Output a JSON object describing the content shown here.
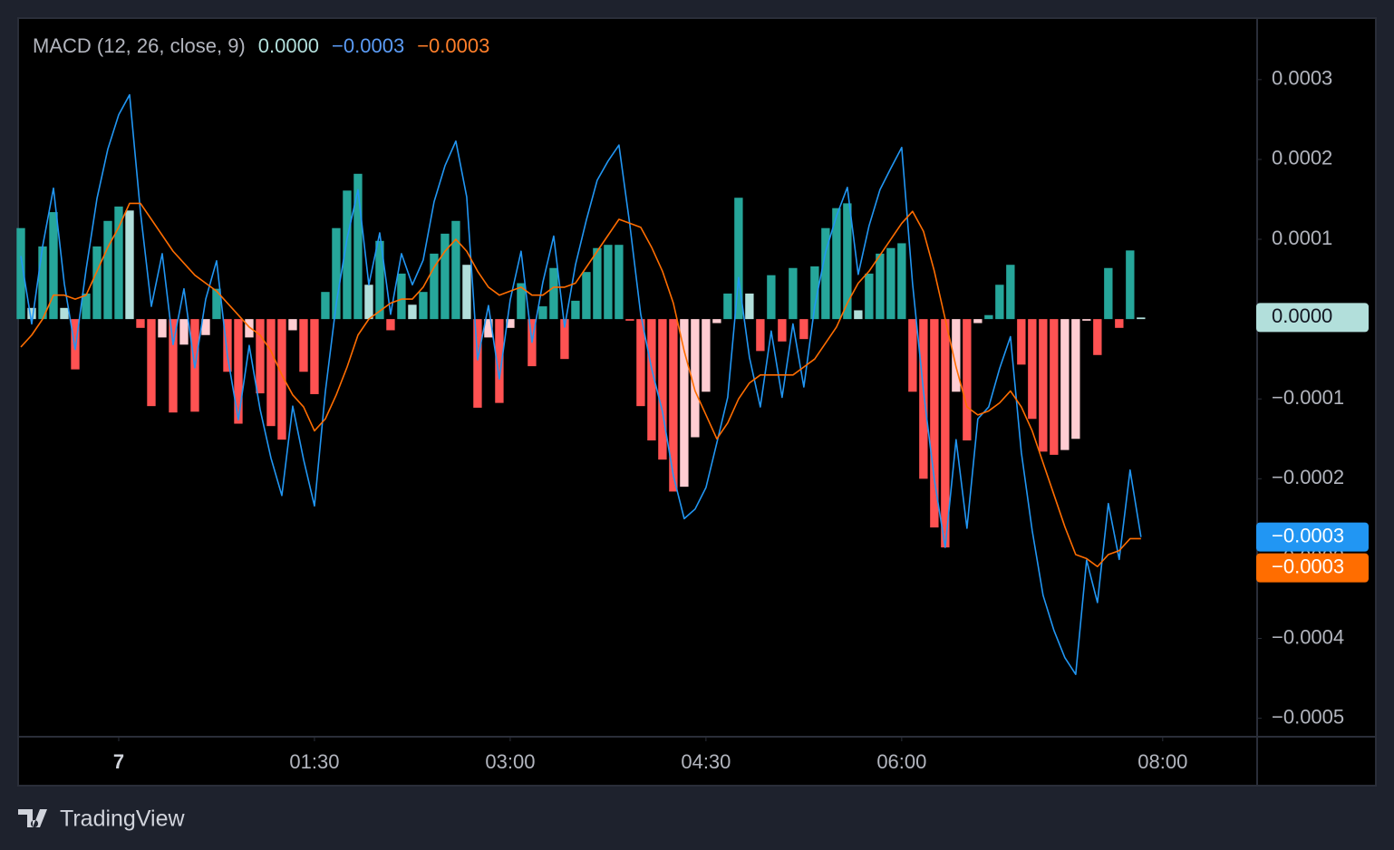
{
  "brand": "TradingView",
  "chart_data": {
    "type": "combo",
    "title": "MACD (12, 26, close, 9)",
    "grid": false,
    "xlim": [
      -46.25,
      523
    ],
    "ylim": [
      -0.000522,
      0.000377
    ],
    "xticks": [
      {
        "value": 0,
        "label": "7"
      },
      {
        "value": 90,
        "label": "01:30"
      },
      {
        "value": 180,
        "label": "03:00"
      },
      {
        "value": 270,
        "label": "04:30"
      },
      {
        "value": 360,
        "label": "06:00"
      },
      {
        "value": 480,
        "label": "08:00"
      }
    ],
    "yticks": [
      {
        "value": -0.0005,
        "label": "−0.0005"
      },
      {
        "value": -0.0004,
        "label": "−0.0004"
      },
      {
        "value": -0.0003,
        "label": "−0.0003"
      },
      {
        "value": -0.0002,
        "label": "−0.0002"
      },
      {
        "value": -0.0001,
        "label": "−0.0001"
      },
      0.0001,
      0.0002,
      0.0003
    ],
    "x": [
      -45,
      -40,
      -35,
      -30,
      -25,
      -20,
      -15,
      -10,
      -5,
      0,
      5,
      10,
      15,
      20,
      25,
      30,
      35,
      40,
      45,
      50,
      55,
      60,
      65,
      70,
      75,
      80,
      85,
      90,
      95,
      100,
      105,
      110,
      115,
      120,
      125,
      130,
      135,
      140,
      145,
      150,
      155,
      160,
      165,
      170,
      175,
      180,
      185,
      190,
      195,
      200,
      205,
      210,
      215,
      220,
      225,
      230,
      235,
      240,
      245,
      250,
      255,
      260,
      265,
      270,
      275,
      280,
      285,
      290,
      295,
      300,
      305,
      310,
      315,
      320,
      325,
      330,
      335,
      340,
      345,
      350,
      355,
      360,
      365,
      370,
      375,
      380,
      385,
      390,
      395,
      400,
      405,
      410,
      415,
      420,
      425,
      430,
      435,
      440,
      445,
      450,
      455,
      460,
      465,
      470
    ],
    "series": [
      {
        "type": "bar",
        "colors": [
          "#26a69a",
          "#b2dfdb",
          "#ff5252",
          "#ffcdd2"
        ],
        "last_label": "0.0000",
        "values": [
          0.000114,
          1.4e-05,
          9.1e-05,
          0.000134,
          1.4e-05,
          -6.3e-05,
          3.2e-05,
          9.1e-05,
          0.000123,
          0.000141,
          0.000136,
          -1.1e-05,
          -0.000109,
          -2.3e-05,
          -0.000117,
          -3.2e-05,
          -0.000116,
          -2e-05,
          3.8e-05,
          -6.6e-05,
          -0.000131,
          -2.3e-05,
          -9.3e-05,
          -0.000134,
          -0.000151,
          -1.4e-05,
          -6.6e-05,
          -9.4e-05,
          3.4e-05,
          0.000114,
          0.000161,
          0.000182,
          4.3e-05,
          9.8e-05,
          -1.4e-05,
          5.7e-05,
          1.8e-05,
          3.4e-05,
          8.2e-05,
          0.000107,
          0.000123,
          6.8e-05,
          -0.000111,
          -2.3e-05,
          -0.000105,
          -1.1e-05,
          4.5e-05,
          -5.9e-05,
          1.6e-05,
          6.4e-05,
          -5e-05,
          2.3e-05,
          5.9e-05,
          8.9e-05,
          9.3e-05,
          9.3e-05,
          -2e-06,
          -0.000109,
          -0.000152,
          -0.000176,
          -0.000216,
          -0.00021,
          -0.000148,
          -9.1e-05,
          -5e-06,
          3.2e-05,
          0.000152,
          3.2e-05,
          -4e-05,
          5.5e-05,
          -2.8e-05,
          6.4e-05,
          -2.5e-05,
          6.6e-05,
          0.000114,
          0.000139,
          0.000145,
          1.1e-05,
          5.7e-05,
          8.2e-05,
          8.9e-05,
          9.5e-05,
          -9.1e-05,
          -0.0002,
          -0.000261,
          -0.000286,
          -9.1e-05,
          -0.000152,
          -5e-06,
          5e-06,
          4.3e-05,
          6.8e-05,
          -5.7e-05,
          -0.000125,
          -0.000166,
          -0.00017,
          -0.000164,
          -0.00015,
          -2e-06,
          -4.5e-05,
          6.4e-05,
          -1.1e-05,
          8.6e-05,
          2e-06
        ]
      },
      {
        "type": "line",
        "color": "#2196f3",
        "last_label": "−0.0003",
        "values": [
          7.9e-05,
          -6e-06,
          9.1e-05,
          0.000164,
          4.4e-05,
          -3.8e-05,
          6.2e-05,
          0.000151,
          0.000213,
          0.000256,
          0.000281,
          0.000134,
          1.6e-05,
          8.2e-05,
          -3.2e-05,
          3.8e-05,
          -6.1e-05,
          2.5e-05,
          7.3e-05,
          -4.6e-05,
          -0.000126,
          -3.3e-05,
          -0.000113,
          -0.000174,
          -0.000221,
          -0.000109,
          -0.000176,
          -0.000234,
          -9.1e-05,
          1.9e-05,
          0.000101,
          0.000162,
          4.3e-05,
          0.000108,
          6e-06,
          8.2e-05,
          4.3e-05,
          7.4e-05,
          0.000147,
          0.000192,
          0.000223,
          0.000153,
          -5.1e-05,
          1.7e-05,
          -7.5e-05,
          2.4e-05,
          8.5e-05,
          -2.9e-05,
          4.6e-05,
          0.000104,
          -1e-05,
          6.8e-05,
          0.000124,
          0.000174,
          0.000198,
          0.000218,
          0.000118,
          6e-06,
          -6.2e-05,
          -0.000116,
          -0.000196,
          -0.00025,
          -0.000238,
          -0.000211,
          -0.000155,
          -9.8e-05,
          5.2e-05,
          -4.8e-05,
          -0.00011,
          -1.5e-05,
          -9.8e-05,
          -6e-06,
          -8.5e-05,
          1.6e-05,
          8.4e-05,
          0.000129,
          0.000165,
          5.6e-05,
          0.000117,
          0.000162,
          0.000189,
          0.000215,
          4.4e-05,
          -9e-05,
          -0.000201,
          -0.000286,
          -0.000151,
          -0.000262,
          -0.000125,
          -0.00011,
          -6.2e-05,
          -2.2e-05,
          -0.000167,
          -0.000265,
          -0.000346,
          -0.00039,
          -0.000424,
          -0.000445,
          -0.000302,
          -0.000355,
          -0.000231,
          -0.000301,
          -0.000189,
          -0.000273
        ]
      },
      {
        "type": "line",
        "color": "#ff6d00",
        "last_label": "−0.0003",
        "values": [
          -3.5e-05,
          -2e-05,
          0,
          3e-05,
          3e-05,
          2.5e-05,
          3e-05,
          6e-05,
          9e-05,
          0.000115,
          0.000145,
          0.000145,
          0.000125,
          0.000105,
          8.5e-05,
          7e-05,
          5.5e-05,
          4.5e-05,
          3.5e-05,
          2e-05,
          5e-06,
          -1e-05,
          -2e-05,
          -4e-05,
          -7e-05,
          -9.5e-05,
          -0.00011,
          -0.00014,
          -0.000125,
          -9.5e-05,
          -6e-05,
          -2e-05,
          0,
          1e-05,
          2e-05,
          2.5e-05,
          2.5e-05,
          4e-05,
          6.5e-05,
          8.5e-05,
          0.0001,
          8.5e-05,
          6e-05,
          4e-05,
          3e-05,
          3.5e-05,
          4e-05,
          3e-05,
          3e-05,
          4e-05,
          4e-05,
          4.5e-05,
          6.5e-05,
          8.5e-05,
          0.000105,
          0.000125,
          0.00012,
          0.000115,
          9e-05,
          6e-05,
          2e-05,
          -4e-05,
          -9e-05,
          -0.00012,
          -0.00015,
          -0.00013,
          -0.0001,
          -8e-05,
          -7e-05,
          -7e-05,
          -7e-05,
          -7e-05,
          -6e-05,
          -5e-05,
          -3e-05,
          -1e-05,
          2e-05,
          4.5e-05,
          6e-05,
          8e-05,
          0.0001,
          0.00012,
          0.000135,
          0.00011,
          6e-05,
          0,
          -6e-05,
          -0.00011,
          -0.00012,
          -0.000115,
          -0.000105,
          -9e-05,
          -0.00011,
          -0.00014,
          -0.00018,
          -0.00022,
          -0.00026,
          -0.000295,
          -0.0003,
          -0.00031,
          -0.000295,
          -0.00029,
          -0.000275,
          -0.000275
        ]
      }
    ]
  }
}
